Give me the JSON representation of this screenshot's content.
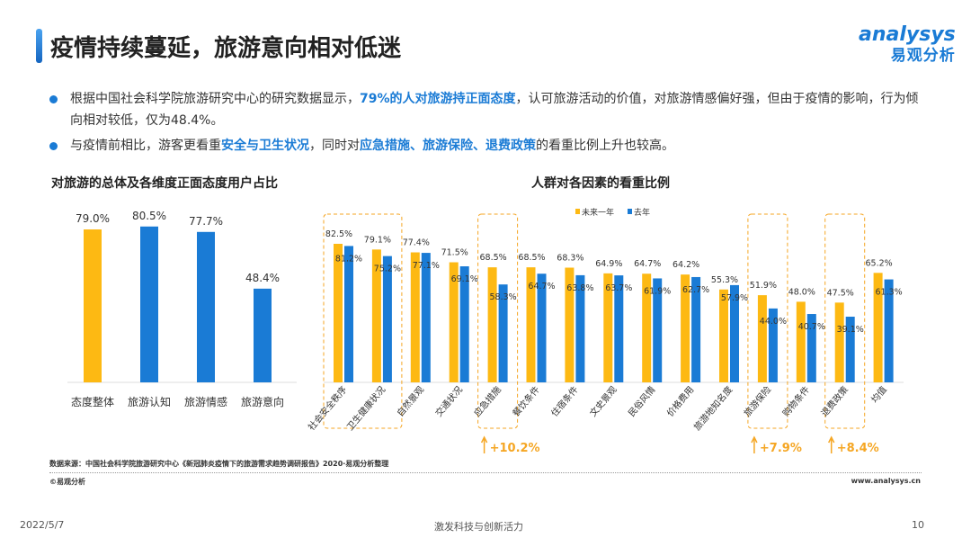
{
  "header": {
    "title": "疫情持续蔓延，旅游意向相对低迷",
    "logo_en": "analysys",
    "logo_cn": "易观分析"
  },
  "bullets": [
    {
      "parts": [
        {
          "t": "根据中国社会科学院旅游研究中心的研究数据显示，"
        },
        {
          "t": "79%的人对旅游持正面态度",
          "hl": true
        },
        {
          "t": "，认可旅游活动的价值，对旅游情感偏好强，但由于疫情的影响，行为倾向相对较低，仅为48.4%。"
        }
      ]
    },
    {
      "parts": [
        {
          "t": "与疫情前相比，游客更看重"
        },
        {
          "t": "安全与卫生状况",
          "hl": true
        },
        {
          "t": "，同时对"
        },
        {
          "t": "应急措施、旅游保险、退费政策",
          "hl": true
        },
        {
          "t": "的看重比例上升也较高。"
        }
      ]
    }
  ],
  "colors": {
    "yellow": "#FDB913",
    "blue": "#1a7bd5",
    "accent_orange": "#f5a623"
  },
  "chart_data": [
    {
      "type": "bar",
      "title": "对旅游的总体及各维度正面态度用户占比",
      "categories": [
        "态度整体",
        "旅游认知",
        "旅游情感",
        "旅游意向"
      ],
      "values": [
        79.0,
        80.5,
        77.7,
        48.4
      ],
      "labels": [
        "79.0%",
        "80.5%",
        "77.7%",
        "48.4%"
      ],
      "bar_colors": [
        "#FDB913",
        "#1a7bd5",
        "#1a7bd5",
        "#1a7bd5"
      ],
      "ylim": [
        0,
        90
      ],
      "grid": false
    },
    {
      "type": "bar",
      "title": "人群对各因素的看重比例",
      "legend_position": "top-right",
      "ylim": [
        0,
        90
      ],
      "grid": false,
      "categories": [
        "社会安全秩序",
        "卫生健康状况",
        "自然景观",
        "交通状况",
        "应急措施",
        "餐饮条件",
        "住宿条件",
        "文史景观",
        "民俗风情",
        "价格费用",
        "旅游地知名度",
        "旅游保险",
        "购物条件",
        "退费政策",
        "均值"
      ],
      "series": [
        {
          "name": "未来一年",
          "color": "#FDB913",
          "values": [
            82.5,
            79.1,
            77.4,
            71.5,
            68.5,
            68.5,
            68.3,
            64.9,
            64.7,
            64.2,
            55.3,
            51.9,
            48.0,
            47.5,
            65.2
          ]
        },
        {
          "name": "去年",
          "color": "#1a7bd5",
          "values": [
            81.2,
            75.2,
            77.1,
            69.1,
            58.3,
            64.7,
            63.8,
            63.7,
            61.9,
            62.7,
            57.9,
            44.0,
            40.7,
            39.1,
            61.3
          ]
        }
      ],
      "annotations": [
        {
          "category": "应急措施",
          "text": "+10.2%"
        },
        {
          "category": "旅游保险",
          "text": "+7.9%"
        },
        {
          "category": "退费政策",
          "text": "+8.4%"
        }
      ],
      "highlight_groups": [
        [
          "社会安全秩序",
          "卫生健康状况"
        ],
        [
          "应急措施"
        ],
        [
          "旅游保险"
        ],
        [
          "退费政策"
        ]
      ]
    }
  ],
  "footer": {
    "source": "数据来源：中国社会科学院旅游研究中心《新冠肺炎疫情下的旅游需求趋势调研报告》2020·易观分析整理",
    "copyright": "©易观分析",
    "website": "www.analysys.cn",
    "date": "2022/5/7",
    "slogan": "激发科技与创新活力",
    "page": "10"
  }
}
